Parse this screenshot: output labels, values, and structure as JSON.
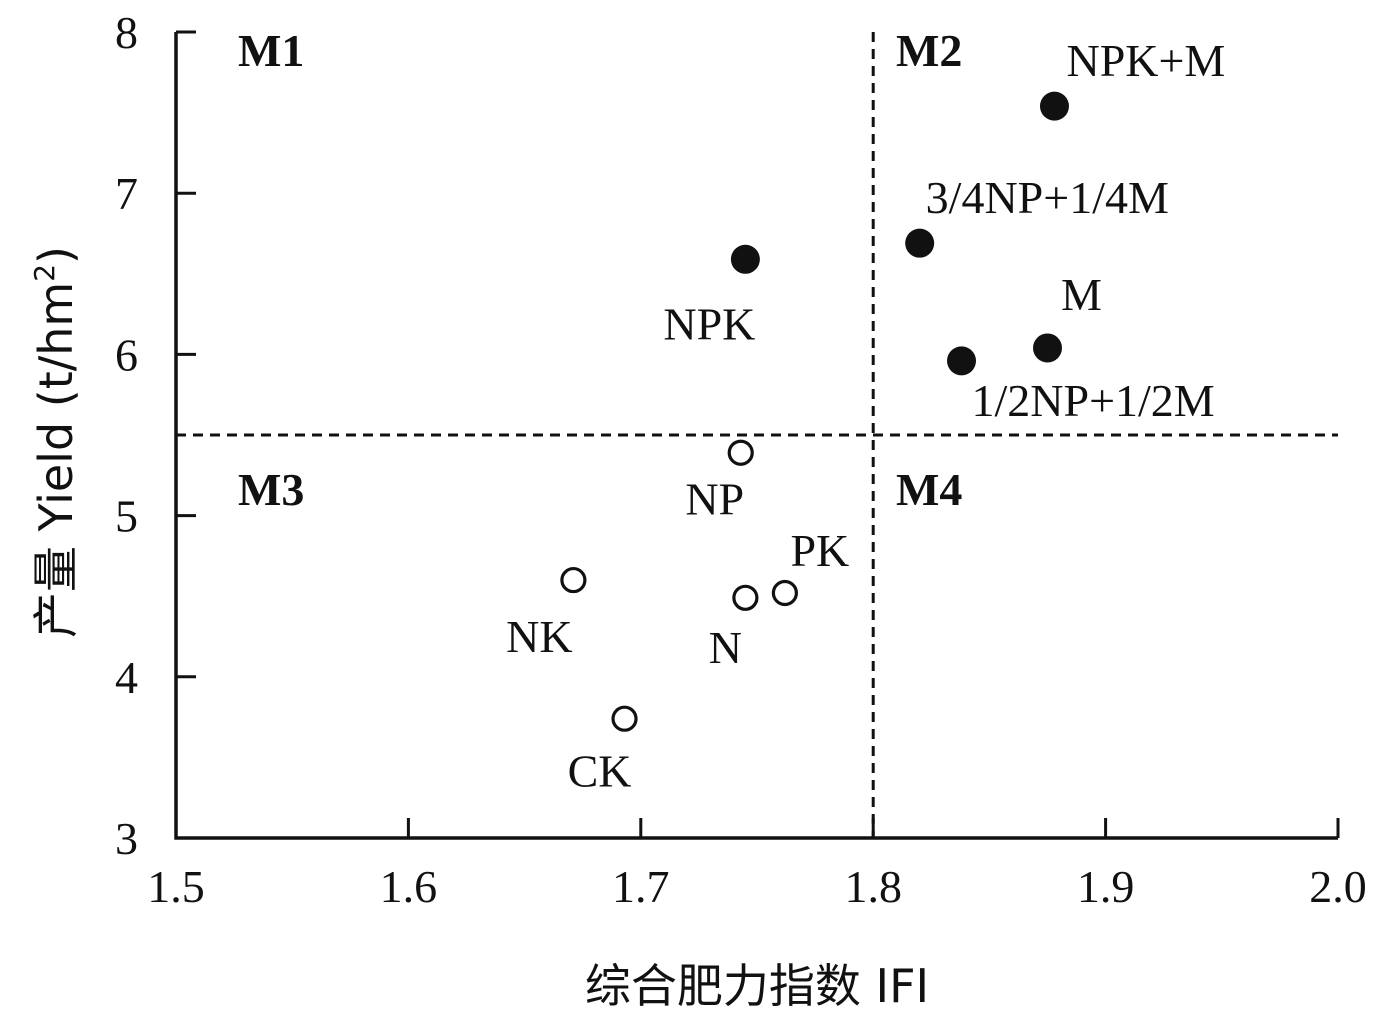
{
  "chart_data": {
    "type": "scatter",
    "xlabel": "综合肥力指数 IFI",
    "ylabel_main": "产量 Yield (t/hm",
    "ylabel_sup": "2",
    "ylabel_close": ")",
    "xlim": [
      1.5,
      2.0
    ],
    "ylim": [
      3,
      8
    ],
    "x_ticks": [
      "1.5",
      "1.6",
      "1.7",
      "1.8",
      "1.9",
      "2.0"
    ],
    "y_ticks": [
      "3",
      "4",
      "5",
      "6",
      "7",
      "8"
    ],
    "grid": false,
    "reference_lines": {
      "x": 1.8,
      "y": 5.5,
      "style": "dashed"
    },
    "quadrants": [
      {
        "label": "M1",
        "position": "top-left"
      },
      {
        "label": "M2",
        "position": "top-right"
      },
      {
        "label": "M3",
        "position": "bottom-left"
      },
      {
        "label": "M4",
        "position": "bottom-right"
      }
    ],
    "series": [
      {
        "marker": "filled-circle",
        "color": "#111111",
        "points": [
          {
            "label": "NPK+M",
            "x": 1.878,
            "y": 7.54
          },
          {
            "label": "3/4NP+1/4M",
            "x": 1.82,
            "y": 6.69
          },
          {
            "label": "NPK",
            "x": 1.745,
            "y": 6.59
          },
          {
            "label": "M",
            "x": 1.875,
            "y": 6.04
          },
          {
            "label": "1/2NP+1/2M",
            "x": 1.838,
            "y": 5.96
          }
        ]
      },
      {
        "marker": "open-circle",
        "color": "#111111",
        "points": [
          {
            "label": "NP",
            "x": 1.743,
            "y": 5.39
          },
          {
            "label": "NK",
            "x": 1.671,
            "y": 4.6
          },
          {
            "label": "PK",
            "x": 1.762,
            "y": 4.52
          },
          {
            "label": "N",
            "x": 1.745,
            "y": 4.49
          },
          {
            "label": "CK",
            "x": 1.693,
            "y": 3.74
          }
        ]
      }
    ]
  }
}
